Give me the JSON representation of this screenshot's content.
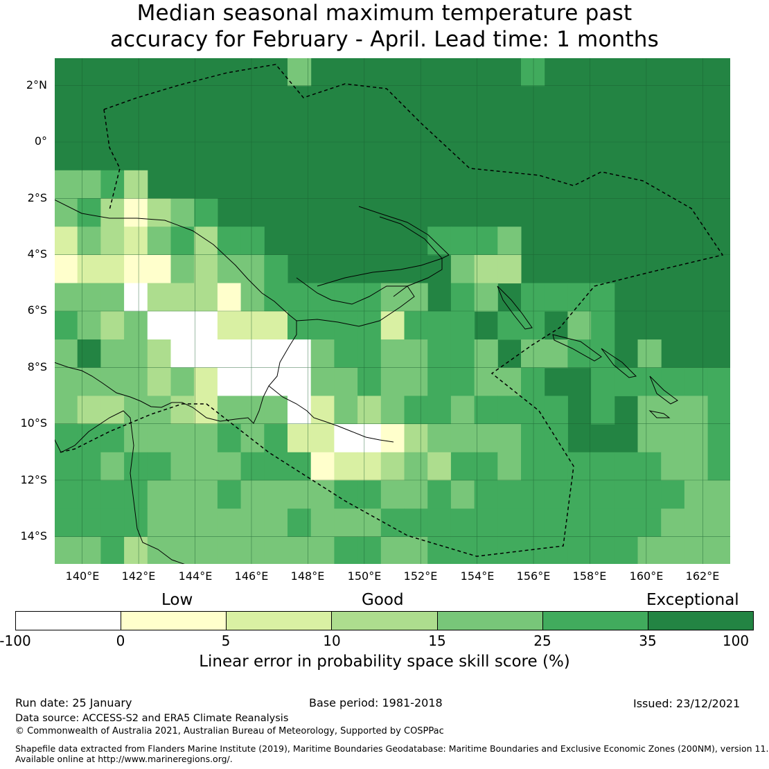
{
  "title_line1": "Median seasonal maximum temperature past",
  "title_line2": "accuracy for February - April. Lead time: 1 months",
  "map": {
    "lat_labels": [
      "2°N",
      "0°",
      "2°S",
      "4°S",
      "6°S",
      "8°S",
      "10°S",
      "12°S",
      "14°S"
    ],
    "lon_labels": [
      "140°E",
      "142°E",
      "144°E",
      "146°E",
      "148°E",
      "150°E",
      "152°E",
      "154°E",
      "156°E",
      "158°E",
      "160°E",
      "162°E"
    ],
    "lat_range": [
      -15,
      3
    ],
    "lon_range": [
      139,
      163
    ],
    "background_color": "#238443"
  },
  "colorbar": {
    "categories": [
      "Low",
      "Good",
      "Exceptional"
    ],
    "ticks": [
      "-100",
      "0",
      "5",
      "10",
      "15",
      "25",
      "35",
      "100"
    ],
    "colors": [
      "#ffffff",
      "#ffffcc",
      "#d9f0a3",
      "#addd8e",
      "#78c679",
      "#41ab5d",
      "#238443"
    ],
    "label": "Linear error in probability space skill score (%)"
  },
  "footer": {
    "run_date": "Run date: 25 January",
    "base_period": "Base period: 1981-2018",
    "issued": "Issued: 23/12/2021",
    "data_source": "Data source: ACCESS-S2 and ERA5 Climate Reanalysis",
    "copyright": "© Commonwealth of Australia 2021, Australian Bureau of Meteorology, Supported by COSPPac",
    "shapefile_line1": "Shapefile data extracted from Flanders Marine Institute (2019), Maritime Boundaries Geodatabase: Maritime Boundaries and Exclusive Economic Zones (200NM), version 11.",
    "shapefile_line2": "Available online at http://www.marineregions.org/."
  }
}
